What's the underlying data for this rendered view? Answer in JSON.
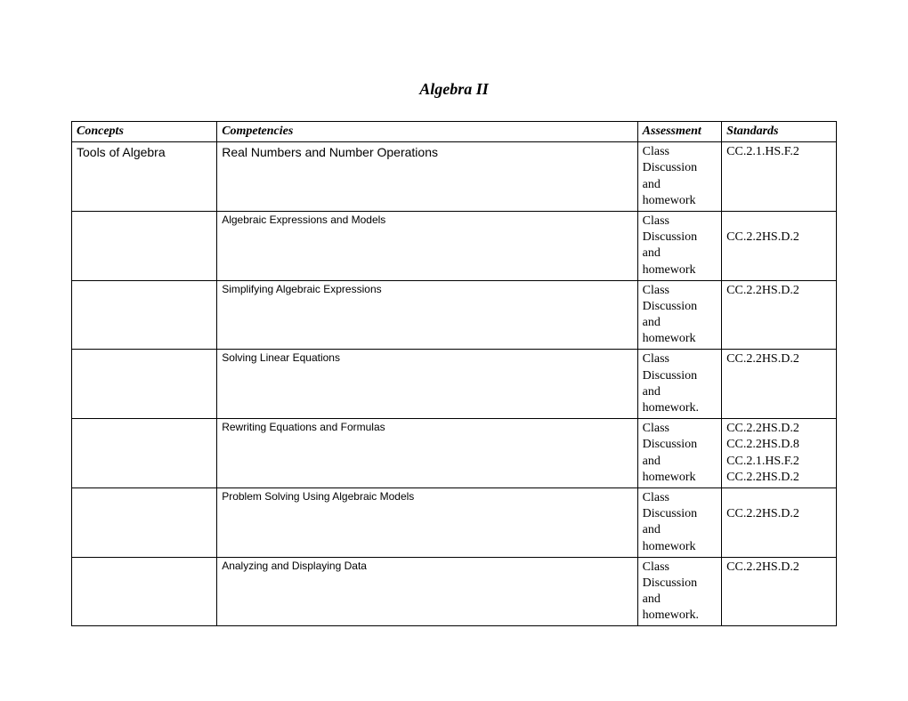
{
  "title": "Algebra II",
  "headers": {
    "concepts": "Concepts",
    "competencies": "Competencies",
    "assessment": "Assessment",
    "standards": "Standards"
  },
  "rows": [
    {
      "concept": "Tools of Algebra",
      "competency": "Real Numbers and Number Operations",
      "competency_style": "main",
      "assessment": "Class Discussion and homework",
      "standards": [
        "CC.2.1.HS.F.2"
      ]
    },
    {
      "concept": "",
      "competency": "Algebraic Expressions and Models",
      "competency_style": "sub",
      "assessment": "Class Discussion and homework",
      "standards": [
        "",
        "CC.2.2HS.D.2"
      ]
    },
    {
      "concept": "",
      "competency": "Simplifying Algebraic Expressions",
      "competency_style": "sub",
      "assessment": "Class Discussion and homework",
      "standards": [
        "CC.2.2HS.D.2"
      ]
    },
    {
      "concept": "",
      "competency": "Solving Linear Equations",
      "competency_style": "sub",
      "assessment": "Class Discussion and homework.",
      "standards": [
        "CC.2.2HS.D.2"
      ]
    },
    {
      "concept": "",
      "competency": "Rewriting Equations and Formulas",
      "competency_style": "sub",
      "assessment": "Class Discussion and homework",
      "standards": [
        "CC.2.2HS.D.2",
        "CC.2.2HS.D.8",
        "CC.2.1.HS.F.2",
        "CC.2.2HS.D.2"
      ]
    },
    {
      "concept": "",
      "competency": "Problem Solving Using Algebraic Models",
      "competency_style": "sub",
      "assessment": "Class Discussion and homework",
      "standards": [
        "",
        "CC.2.2HS.D.2"
      ]
    },
    {
      "concept": "",
      "competency": "Analyzing and Displaying Data",
      "competency_style": "sub",
      "assessment": "Class Discussion and homework.",
      "standards": [
        "CC.2.2HS.D.2"
      ]
    }
  ],
  "colors": {
    "background": "#ffffff",
    "border": "#000000",
    "text": "#000000"
  }
}
